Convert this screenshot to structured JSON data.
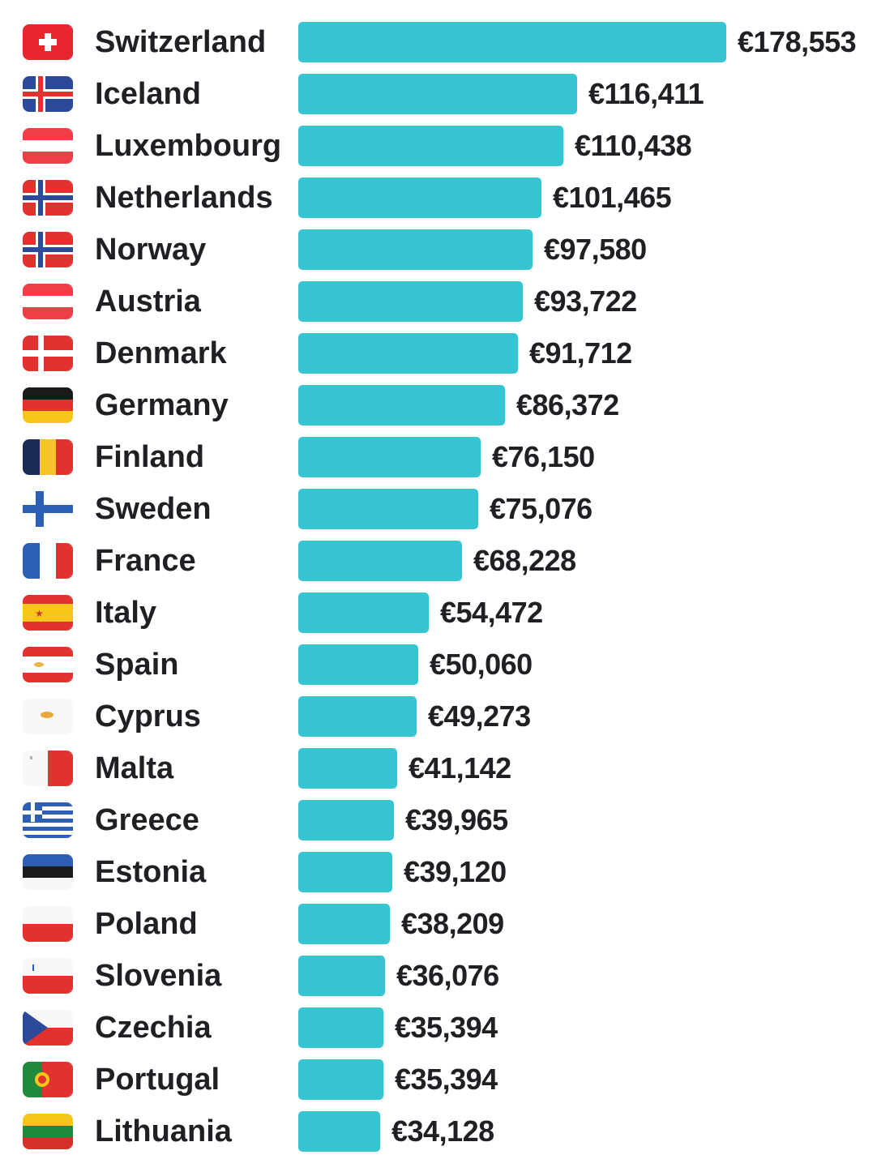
{
  "chart_data": {
    "type": "bar",
    "orientation": "horizontal",
    "title": "",
    "xlabel": "",
    "ylabel": "",
    "currency_symbol": "€",
    "bar_color": "#36c4d0",
    "xlim": [
      0,
      178553
    ],
    "categories": [
      "Switzerland",
      "Iceland",
      "Luxembourg",
      "Netherlands",
      "Norway",
      "Austria",
      "Denmark",
      "Germany",
      "Finland",
      "Sweden",
      "France",
      "Italy",
      "Spain",
      "Cyprus",
      "Malta",
      "Greece",
      "Estonia",
      "Poland",
      "Slovenia",
      "Czechia",
      "Portugal",
      "Lithuania"
    ],
    "values": [
      178553,
      116411,
      110438,
      101465,
      97580,
      93722,
      91712,
      86372,
      76150,
      75076,
      68228,
      54472,
      50060,
      49273,
      41142,
      39965,
      39120,
      38209,
      36076,
      35394,
      35394,
      34128
    ],
    "value_labels": [
      "€178,553",
      "€116,411",
      "€110,438",
      "€101,465",
      "€97,580",
      "€93,722",
      "€91,712",
      "€86,372",
      "€76,150",
      "€75,076",
      "€68,228",
      "€54,472",
      "€50,060",
      "€49,273",
      "€41,142",
      "€39,965",
      "€39,120",
      "€38,209",
      "€36,076",
      "€35,394",
      "€35,394",
      "€34,128"
    ],
    "flag_icons": [
      "switzerland-flag-icon",
      "iceland-flag-icon",
      "luxembourg-flag-icon",
      "netherlands-flag-icon",
      "norway-flag-icon",
      "austria-flag-icon",
      "denmark-flag-icon",
      "germany-flag-icon",
      "finland-flag-icon",
      "sweden-flag-icon",
      "france-flag-icon",
      "italy-flag-icon",
      "spain-flag-icon",
      "cyprus-flag-icon",
      "malta-flag-icon",
      "greece-flag-icon",
      "estonia-flag-icon",
      "poland-flag-icon",
      "slovenia-flag-icon",
      "czechia-flag-icon",
      "portugal-flag-icon",
      "lithuania-flag-icon"
    ]
  }
}
